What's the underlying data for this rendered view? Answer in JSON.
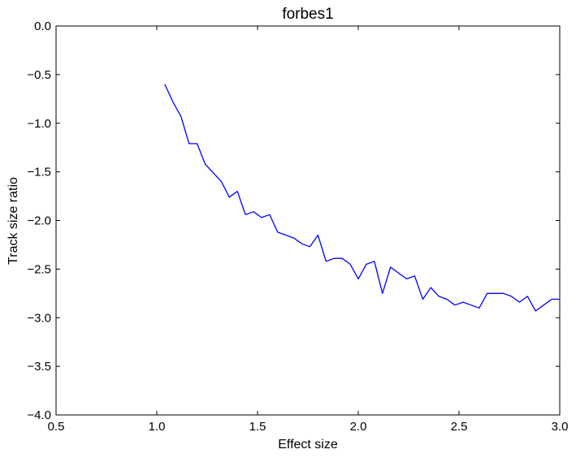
{
  "chart_data": {
    "type": "line",
    "title": "forbes1",
    "xlabel": "Effect size",
    "ylabel": "Track size ratio",
    "xlim": [
      0.5,
      3.0
    ],
    "ylim": [
      -4.0,
      0.0
    ],
    "x_ticks": [
      "0.5",
      "1.0",
      "1.5",
      "2.0",
      "2.5",
      "3.0"
    ],
    "y_ticks": [
      "0.0",
      "−0.5",
      "−1.0",
      "−1.5",
      "−2.0",
      "−2.5",
      "−3.0",
      "−3.5",
      "−4.0"
    ],
    "grid": false,
    "legend": "none",
    "series": [
      {
        "color": "#0000ff",
        "x": [
          1.04,
          1.08,
          1.12,
          1.16,
          1.2,
          1.24,
          1.28,
          1.32,
          1.36,
          1.4,
          1.44,
          1.48,
          1.52,
          1.56,
          1.6,
          1.64,
          1.68,
          1.72,
          1.76,
          1.8,
          1.84,
          1.88,
          1.92,
          1.96,
          2.0,
          2.04,
          2.08,
          2.12,
          2.16,
          2.2,
          2.24,
          2.28,
          2.32,
          2.36,
          2.4,
          2.44,
          2.48,
          2.52,
          2.56,
          2.6,
          2.64,
          2.68,
          2.72,
          2.76,
          2.8,
          2.84,
          2.88,
          2.92,
          2.96,
          3.0
        ],
        "y": [
          -0.6,
          -0.78,
          -0.93,
          -1.21,
          -1.21,
          -1.42,
          -1.51,
          -1.6,
          -1.76,
          -1.7,
          -1.94,
          -1.91,
          -1.97,
          -1.94,
          -2.12,
          -2.15,
          -2.18,
          -2.24,
          -2.27,
          -2.15,
          -2.42,
          -2.39,
          -2.39,
          -2.45,
          -2.6,
          -2.45,
          -2.42,
          -2.75,
          -2.48,
          -2.54,
          -2.6,
          -2.57,
          -2.81,
          -2.69,
          -2.78,
          -2.81,
          -2.87,
          -2.84,
          -2.87,
          -2.9,
          -2.75,
          -2.75,
          -2.75,
          -2.78,
          -2.84,
          -2.78,
          -2.93,
          -2.87,
          -2.81,
          -2.81
        ]
      }
    ]
  }
}
